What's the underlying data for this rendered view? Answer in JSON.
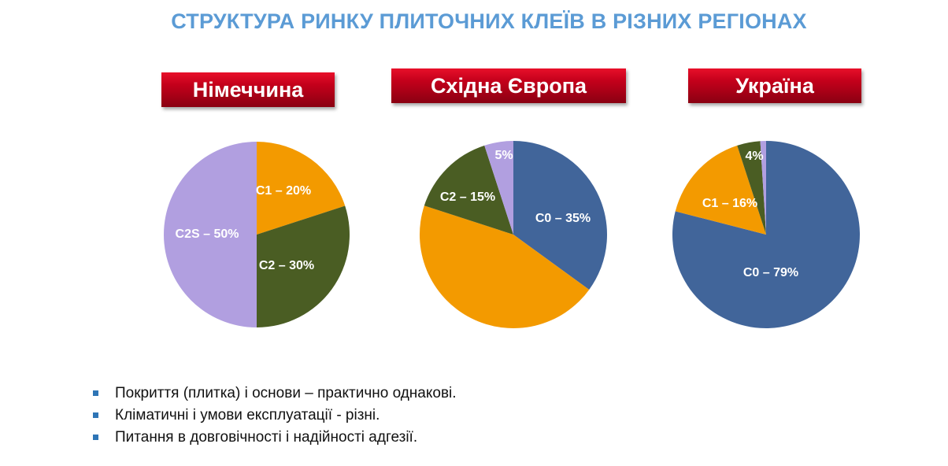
{
  "title": "СТРУКТУРА РИНКУ ПЛИТОЧНИХ КЛЕЇВ В РІЗНИХ РЕГІОНАХ",
  "colors": {
    "C0": "#41659a",
    "C1": "#f39a00",
    "C2": "#4a5d23",
    "C2S": "#b19fe0",
    "label_bg": "#c4001b",
    "title": "#5b9bd5"
  },
  "chart_data": [
    {
      "type": "pie",
      "title": "Німеччина",
      "slices": [
        {
          "name": "C1",
          "value": 20,
          "label": "C1 – 20%",
          "color": "#f39a00"
        },
        {
          "name": "C2",
          "value": 30,
          "label": "C2 – 30%",
          "color": "#4a5d23"
        },
        {
          "name": "C2S",
          "value": 50,
          "label": "C2S – 50%",
          "color": "#b19fe0"
        }
      ]
    },
    {
      "type": "pie",
      "title": "Східна Європа",
      "slices": [
        {
          "name": "C0",
          "value": 35,
          "label": "C0 – 35%",
          "color": "#41659a"
        },
        {
          "name": "C1",
          "value": 45,
          "label": "",
          "color": "#f39a00"
        },
        {
          "name": "C2",
          "value": 15,
          "label": "C2 – 15%",
          "color": "#4a5d23"
        },
        {
          "name": "C2S",
          "value": 5,
          "label": "5%",
          "color": "#b19fe0"
        }
      ]
    },
    {
      "type": "pie",
      "title": "Україна",
      "slices": [
        {
          "name": "C0",
          "value": 79,
          "label": "C0 – 79%",
          "color": "#41659a"
        },
        {
          "name": "C1",
          "value": 16,
          "label": "C1 – 16%",
          "color": "#f39a00"
        },
        {
          "name": "C2",
          "value": 4,
          "label": "4%",
          "color": "#4a5d23"
        },
        {
          "name": "C2S",
          "value": 1,
          "label": "",
          "color": "#b19fe0"
        }
      ]
    }
  ],
  "bullets": [
    "Покриття (плитка) і основи – практично однакові.",
    "Кліматичні  і умови експлуатації  - різні.",
    "Питання в довговічності і надійності адгезії."
  ]
}
